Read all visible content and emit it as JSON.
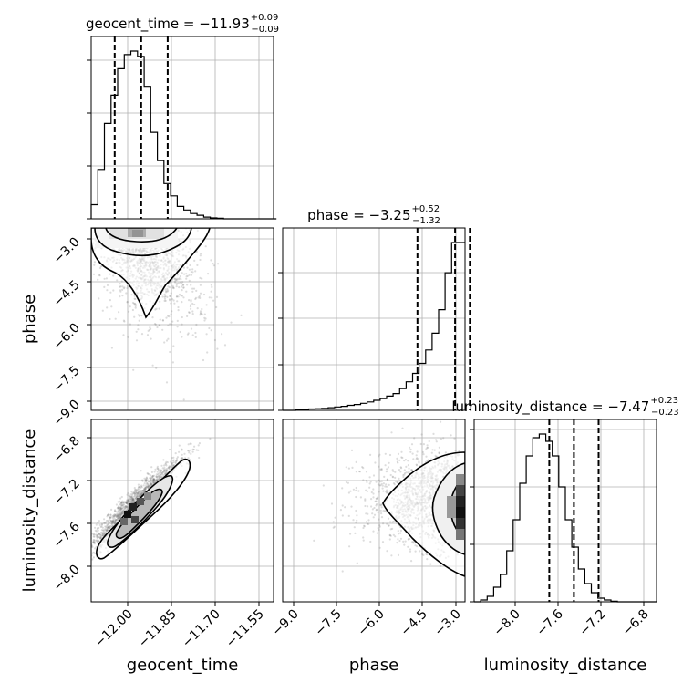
{
  "chart_data": {
    "type": "corner",
    "parameters": [
      "geocent_time",
      "phase",
      "luminosity_distance"
    ],
    "titles": [
      {
        "parameter": "geocent_time",
        "label": "geocent_time = −11.93",
        "plus": "+0.09",
        "minus": "−0.09",
        "median": -11.93,
        "q_low": -12.02,
        "q_high": -11.84
      },
      {
        "parameter": "phase",
        "label": "phase = −3.25",
        "plus": "+0.52",
        "minus": "−1.32",
        "median": -3.25,
        "q_low": -4.57,
        "q_high": -2.73
      },
      {
        "parameter": "luminosity_distance",
        "label": "luminosity_distance = −7.47",
        "plus": "+0.23",
        "minus": "−0.23",
        "median": -7.47,
        "q_low": -7.7,
        "q_high": -7.24
      }
    ],
    "ranges": {
      "geocent_time": [
        -12.1,
        -11.48
      ],
      "phase": [
        -9.3,
        -2.9
      ],
      "luminosity_distance": [
        -8.4,
        -6.7
      ]
    },
    "ticks": {
      "geocent_time": {
        "values": [
          -12.0,
          -11.85,
          -11.7,
          -11.55
        ],
        "labels": [
          "−12.00",
          "−11.85",
          "−11.70",
          "−11.55"
        ]
      },
      "phase": {
        "values": [
          -9.0,
          -7.5,
          -6.0,
          -4.5,
          -3.0
        ],
        "labels": [
          "−9.0",
          "−7.5",
          "−6.0",
          "−4.5",
          "−3.0"
        ]
      },
      "luminosity_distance": {
        "values": [
          -8.0,
          -7.6,
          -7.2,
          -6.8
        ],
        "labels": [
          "−8.0",
          "−7.6",
          "−7.2",
          "−6.8"
        ]
      }
    },
    "histograms": {
      "geocent_time": {
        "edges_start": -12.1,
        "bin_width": 0.0225,
        "heights": [
          0.08,
          0.28,
          0.54,
          0.7,
          0.85,
          0.93,
          0.95,
          0.92,
          0.75,
          0.49,
          0.33,
          0.2,
          0.13,
          0.07,
          0.05,
          0.03,
          0.02,
          0.01,
          0.005,
          0.003,
          0,
          0,
          0,
          0,
          0,
          0,
          0,
          0
        ]
      },
      "phase": {
        "edges_start": -9.3,
        "bin_width": 0.228,
        "heights": [
          0,
          0,
          0.003,
          0.005,
          0.008,
          0.01,
          0.012,
          0.016,
          0.02,
          0.024,
          0.03,
          0.035,
          0.042,
          0.05,
          0.06,
          0.07,
          0.085,
          0.1,
          0.13,
          0.17,
          0.22,
          0.28,
          0.36,
          0.46,
          0.6,
          0.82,
          1.0,
          1.0
        ]
      },
      "luminosity_distance": {
        "edges_start": -8.4,
        "bin_width": 0.0607,
        "heights": [
          0,
          0.01,
          0.03,
          0.08,
          0.15,
          0.28,
          0.45,
          0.65,
          0.8,
          0.9,
          0.92,
          0.88,
          0.8,
          0.63,
          0.45,
          0.3,
          0.18,
          0.1,
          0.05,
          0.02,
          0.01,
          0.003,
          0,
          0,
          0,
          0,
          0,
          0
        ]
      }
    },
    "joint": {
      "phase_vs_geocent_time": {
        "center": [
          -11.95,
          -2.9
        ],
        "spread": [
          0.08,
          1.1
        ],
        "correlation": 0.4
      },
      "luminosity_distance_vs_geocent_time": {
        "center": [
          -11.96,
          -7.5
        ],
        "spread": [
          0.08,
          0.22
        ],
        "correlation": 0.95
      },
      "luminosity_distance_vs_phase": {
        "center": [
          -3.1,
          -7.45
        ],
        "spread": [
          1.0,
          0.22
        ],
        "correlation": 0.0
      }
    },
    "grid": true,
    "legend": "none"
  }
}
